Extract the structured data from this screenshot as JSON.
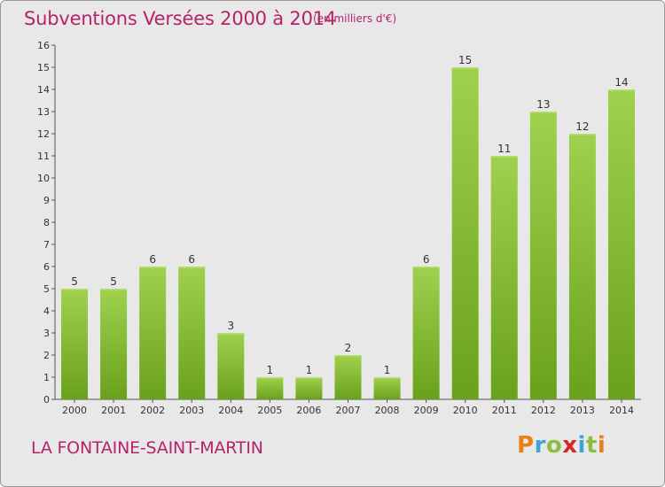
{
  "header": {
    "title": "Subventions Versées 2000 à 2014",
    "subtitle": "(en milliers d'€)"
  },
  "footer": {
    "commune": "LA FONTAINE-SAINT-MARTIN",
    "logo_letters": [
      "P",
      "r",
      "o",
      "x",
      "i",
      "t",
      "i"
    ],
    "logo_colors": [
      "#e8811a",
      "#3fa3d6",
      "#8cbf3f",
      "#d62828",
      "#3fa3d6",
      "#8cbf3f",
      "#e8811a"
    ]
  },
  "chart_data": {
    "type": "bar",
    "title": "Subventions Versées 2000 à 2014",
    "subtitle": "(en milliers d'€)",
    "categories": [
      "2000",
      "2001",
      "2002",
      "2003",
      "2004",
      "2005",
      "2006",
      "2007",
      "2008",
      "2009",
      "2010",
      "2011",
      "2012",
      "2013",
      "2014"
    ],
    "values": [
      5,
      5,
      6,
      6,
      3,
      1,
      1,
      2,
      1,
      6,
      15,
      11,
      13,
      12,
      14
    ],
    "value_labels": [
      "5",
      "5",
      "6",
      "6",
      "3",
      "1",
      "1",
      "2",
      "1",
      "6",
      "15",
      "11",
      "13",
      "12",
      "14"
    ],
    "ylim": [
      0,
      16
    ],
    "yticks": [
      "0",
      "1",
      "2",
      "3",
      "4",
      "5",
      "6",
      "7",
      "8",
      "9",
      "10",
      "11",
      "12",
      "13",
      "14",
      "15",
      "16"
    ],
    "xlabel": "",
    "ylabel": "",
    "grid": false,
    "bar_color_light": "#9fd14f",
    "bar_color_dark": "#6aa11c"
  }
}
